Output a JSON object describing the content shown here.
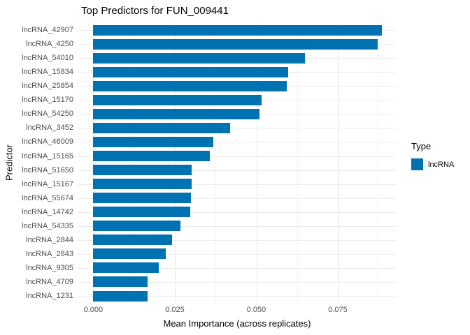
{
  "title": "Top Predictors for FUN_009441",
  "axes": {
    "x_title": "Mean Importance (across replicates)",
    "y_title": "Predictor",
    "x_tick_labels": [
      "0.000",
      "0.025",
      "0.050",
      "0.075"
    ]
  },
  "legend": {
    "title": "Type",
    "items": [
      {
        "label": "lncRNA",
        "color": "#0072b2"
      }
    ]
  },
  "colors": {
    "bar": "#0072b2",
    "grid_major": "#e8e8e8",
    "grid_minor": "#f3f3f3",
    "axis_text": "#4d4d4d",
    "text": "#000000",
    "background": "#ffffff"
  },
  "chart_data": {
    "type": "bar",
    "orientation": "horizontal",
    "title": "Top Predictors for FUN_009441",
    "xlabel": "Mean Importance (across replicates)",
    "ylabel": "Predictor",
    "xlim": [
      -0.0046,
      0.0928
    ],
    "x_major_ticks": [
      0,
      0.025,
      0.05,
      0.075
    ],
    "x_minor_ticks": [
      0.0125,
      0.0375,
      0.0625,
      0.0875
    ],
    "grid": "on",
    "legend_position": "right",
    "series_name": "lncRNA",
    "categories": [
      "lncRNA_42907",
      "lncRNA_4250",
      "lncRNA_54010",
      "lncRNA_15834",
      "lncRNA_25854",
      "lncRNA_15170",
      "lncRNA_54250",
      "lncRNA_3452",
      "lncRNA_46009",
      "lncRNA_15165",
      "lncRNA_51650",
      "lncRNA_15167",
      "lncRNA_55674",
      "lncRNA_14742",
      "lncRNA_54335",
      "lncRNA_2844",
      "lncRNA_2843",
      "lncRNA_9305",
      "lncRNA_4709",
      "lncRNA_1231"
    ],
    "values": [
      0.0885,
      0.0872,
      0.0649,
      0.0598,
      0.0593,
      0.0516,
      0.051,
      0.042,
      0.0368,
      0.0358,
      0.0302,
      0.0302,
      0.0299,
      0.0297,
      0.0267,
      0.0241,
      0.0222,
      0.02,
      0.0166,
      0.0167
    ]
  }
}
